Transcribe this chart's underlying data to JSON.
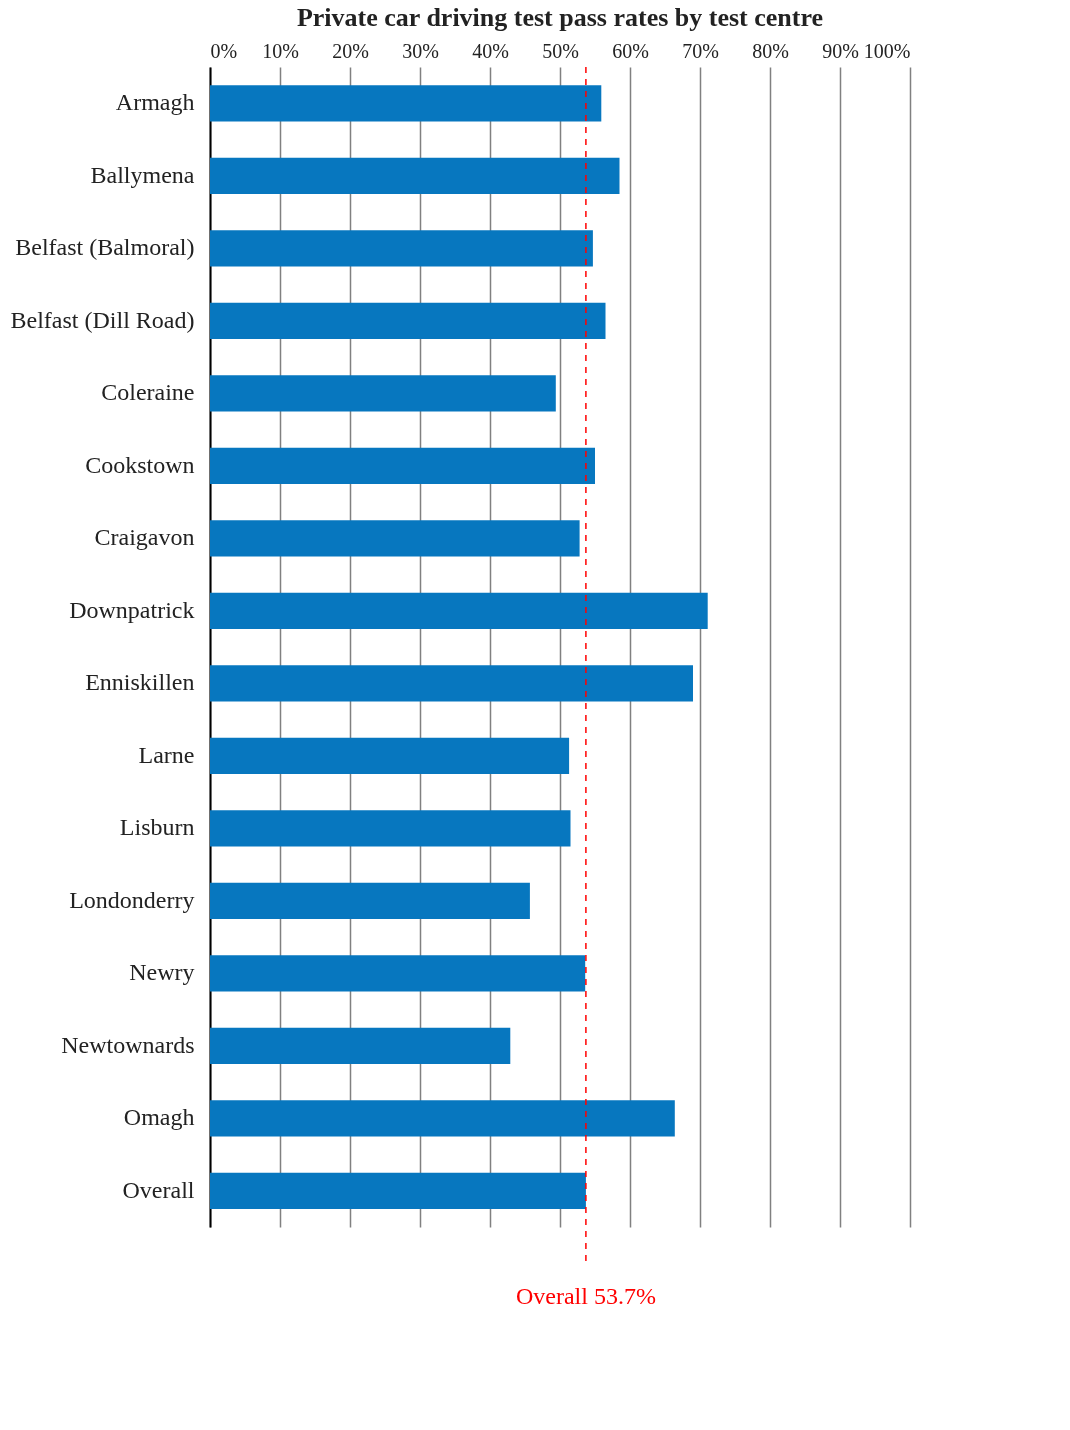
{
  "chart_data": {
    "type": "bar",
    "orientation": "horizontal",
    "title": "Private car driving test pass rates by test centre",
    "categories": [
      "Armagh",
      "Ballymena",
      "Belfast (Balmoral)",
      "Belfast (Dill Road)",
      "Coleraine",
      "Cookstown",
      "Craigavon",
      "Downpatrick",
      "Enniskillen",
      "Larne",
      "Lisburn",
      "Londonderry",
      "Newry",
      "Newtownards",
      "Omagh",
      "Overall"
    ],
    "values": [
      55.9,
      58.5,
      54.7,
      56.5,
      49.4,
      55.0,
      52.8,
      71.1,
      69.0,
      51.3,
      51.5,
      45.7,
      53.6,
      42.9,
      66.4,
      53.7
    ],
    "color": "#0777bf",
    "xlim": [
      0,
      100
    ],
    "xticks": [
      {
        "value": 0,
        "label": "0%"
      },
      {
        "value": 10,
        "label": "10%"
      },
      {
        "value": 20,
        "label": "20%"
      },
      {
        "value": 30,
        "label": "30%"
      },
      {
        "value": 40,
        "label": "40%"
      },
      {
        "value": 50,
        "label": "50%"
      },
      {
        "value": 60,
        "label": "60%"
      },
      {
        "value": 70,
        "label": "70%"
      },
      {
        "value": 80,
        "label": "80%"
      },
      {
        "value": 90,
        "label": "90%"
      },
      {
        "value": 100,
        "label": "100%"
      }
    ],
    "grid": "x",
    "ref_lines": [
      {
        "axis": "x",
        "value": 53.7,
        "label": "Overall 53.7%",
        "color": "#ff0000",
        "line_style": "dashed"
      }
    ]
  }
}
